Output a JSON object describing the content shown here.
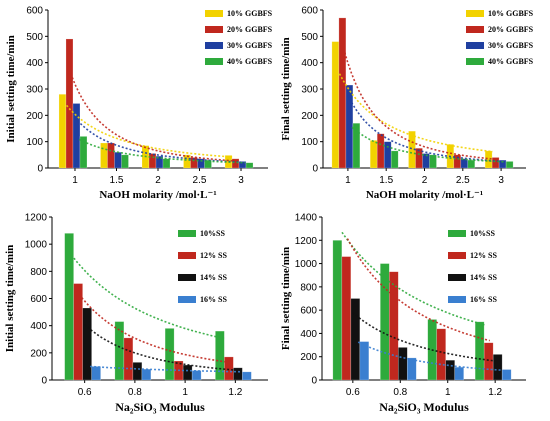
{
  "chart_data": [
    {
      "type": "bar",
      "categories": [
        "1",
        "1.5",
        "2",
        "2.5",
        "3"
      ],
      "ylabel": "Initial setting time/min",
      "xlabel": "NaOH molarity /mol·L⁻¹",
      "ylim": [
        0,
        600
      ],
      "yticks": [
        "0",
        "100",
        "200",
        "300",
        "400",
        "500",
        "600"
      ],
      "legend_position": "top-right",
      "trendlines": true,
      "series": [
        {
          "name": "10% GGBFS",
          "color": "#f2d200",
          "values": [
            280,
            95,
            85,
            50,
            48
          ]
        },
        {
          "name": "20% GGBFS",
          "color": "#c0281e",
          "values": [
            490,
            95,
            55,
            40,
            35
          ]
        },
        {
          "name": "30% GGBFS",
          "color": "#1f3fa0",
          "values": [
            245,
            60,
            45,
            35,
            25
          ]
        },
        {
          "name": "40% GGBFS",
          "color": "#2eaa3c",
          "values": [
            120,
            50,
            35,
            30,
            20
          ]
        }
      ]
    },
    {
      "type": "bar",
      "categories": [
        "1",
        "1.5",
        "2",
        "2.5",
        "3"
      ],
      "ylabel": "Final setting time/min",
      "xlabel": "NaOH molarity /mol·L⁻¹",
      "ylim": [
        0,
        600
      ],
      "yticks": [
        "0",
        "100",
        "200",
        "300",
        "400",
        "500",
        "600"
      ],
      "legend_position": "top-right",
      "trendlines": true,
      "series": [
        {
          "name": "10% GGBFS",
          "color": "#f2d200",
          "values": [
            480,
            105,
            140,
            90,
            65
          ]
        },
        {
          "name": "20% GGBFS",
          "color": "#c0281e",
          "values": [
            570,
            130,
            75,
            50,
            40
          ]
        },
        {
          "name": "30% GGBFS",
          "color": "#1f3fa0",
          "values": [
            315,
            100,
            55,
            35,
            30
          ]
        },
        {
          "name": "40% GGBFS",
          "color": "#2eaa3c",
          "values": [
            170,
            65,
            50,
            30,
            25
          ]
        }
      ]
    },
    {
      "type": "bar",
      "categories": [
        "0.6",
        "0.8",
        "1",
        "1.2"
      ],
      "ylabel": "Initial setting time/min",
      "xlabel": "Na₂SiO₃  Modulus",
      "ylim": [
        0,
        1200
      ],
      "yticks": [
        "0",
        "200",
        "400",
        "600",
        "800",
        "1000",
        "1200"
      ],
      "legend_position": "top-right",
      "trendlines": true,
      "series": [
        {
          "name": "10%SS",
          "color": "#2eaa3c",
          "values": [
            1080,
            430,
            380,
            360
          ]
        },
        {
          "name": "12% SS",
          "color": "#c0281e",
          "values": [
            710,
            310,
            140,
            170
          ]
        },
        {
          "name": "14% SS",
          "color": "#111111",
          "values": [
            530,
            130,
            110,
            90
          ]
        },
        {
          "name": "16% SS",
          "color": "#3a7fd0",
          "values": [
            100,
            80,
            70,
            60
          ]
        }
      ]
    },
    {
      "type": "bar",
      "categories": [
        "0.6",
        "0.8",
        "1",
        "1.2"
      ],
      "ylabel": "Final setting time/min",
      "xlabel": "Na₂SiO₃  Modulus",
      "ylim": [
        0,
        1400
      ],
      "yticks": [
        "0",
        "200",
        "400",
        "600",
        "800",
        "1000",
        "1200",
        "1400"
      ],
      "legend_position": "top-right",
      "trendlines": true,
      "series": [
        {
          "name": "10%SS",
          "color": "#2eaa3c",
          "values": [
            1200,
            1000,
            520,
            500
          ]
        },
        {
          "name": "12% SS",
          "color": "#c0281e",
          "values": [
            1060,
            930,
            440,
            320
          ]
        },
        {
          "name": "14% SS",
          "color": "#111111",
          "values": [
            700,
            280,
            170,
            220
          ]
        },
        {
          "name": "16% SS",
          "color": "#3a7fd0",
          "values": [
            330,
            190,
            110,
            90
          ]
        }
      ]
    }
  ]
}
